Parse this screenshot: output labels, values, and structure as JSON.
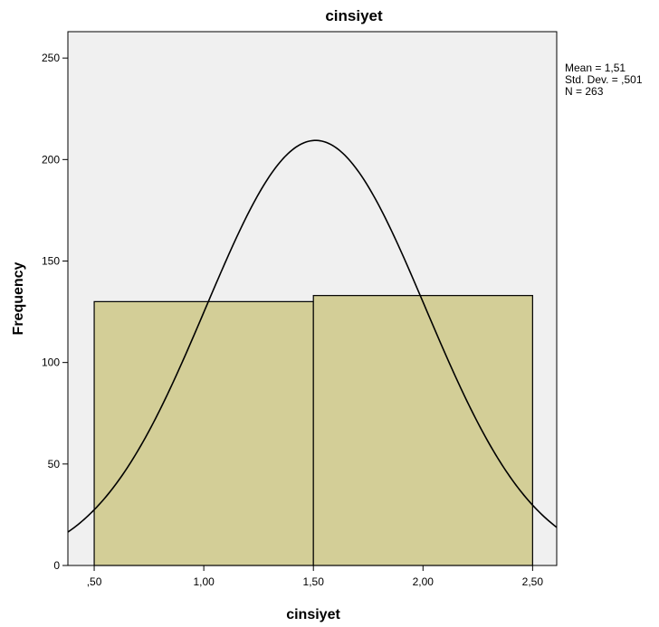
{
  "chart_data": {
    "type": "bar",
    "title": "cinsiyet",
    "xlabel": "cinsiyet",
    "ylabel": "Frequency",
    "bins": [
      {
        "start": 0.5,
        "end": 1.5,
        "value": 130
      },
      {
        "start": 1.5,
        "end": 2.5,
        "value": 133
      }
    ],
    "xlim": [
      0.38,
      2.61
    ],
    "ylim": [
      0,
      263
    ],
    "x_ticks": [
      {
        "value": 0.5,
        "label": ",50"
      },
      {
        "value": 1.0,
        "label": "1,00"
      },
      {
        "value": 1.5,
        "label": "1,50"
      },
      {
        "value": 2.0,
        "label": "2,00"
      },
      {
        "value": 2.5,
        "label": "2,50"
      }
    ],
    "y_ticks": [
      {
        "value": 0,
        "label": "0"
      },
      {
        "value": 50,
        "label": "50"
      },
      {
        "value": 100,
        "label": "100"
      },
      {
        "value": 150,
        "label": "150"
      },
      {
        "value": 200,
        "label": "200"
      },
      {
        "value": 250,
        "label": "250"
      }
    ],
    "normal_curve": {
      "mean": 1.51,
      "std_dev": 0.501,
      "n": 263,
      "bin_width": 1.0
    },
    "stats": [
      "Mean = 1,51",
      "Std. Dev. = ,501",
      "N = 263"
    ],
    "grid": false,
    "legend_placement": "top-right",
    "colors": {
      "plot_background": "#f0f0f0",
      "bar_fill": "#d3ce97",
      "bar_stroke": "#000000",
      "curve": "#000000"
    }
  }
}
